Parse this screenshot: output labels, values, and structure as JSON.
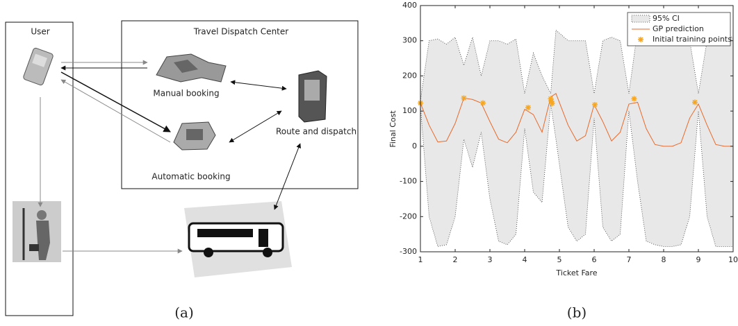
{
  "diagram": {
    "user_label": "User",
    "center_title": "Travel Dispatch Center",
    "nodes": [
      "Manual booking",
      "Automatic booking",
      "Route and dispatch"
    ]
  },
  "panel_labels": [
    "(a)",
    "(b)"
  ],
  "chart_data": {
    "type": "line",
    "xlabel": "Ticket Fare",
    "ylabel": "Final Cost",
    "xlim": [
      1,
      10
    ],
    "ylim": [
      -300,
      400
    ],
    "xticks": [
      1,
      2,
      3,
      4,
      5,
      6,
      7,
      8,
      9,
      10
    ],
    "yticks": [
      -300,
      -200,
      -100,
      0,
      100,
      200,
      300,
      400
    ],
    "legend": "upper right",
    "x": [
      1,
      1.25,
      1.5,
      1.75,
      2,
      2.25,
      2.5,
      2.75,
      3,
      3.25,
      3.5,
      3.75,
      4,
      4.25,
      4.5,
      4.75,
      4.9,
      5.25,
      5.5,
      5.75,
      6,
      6.25,
      6.5,
      6.75,
      7,
      7.25,
      7.5,
      7.75,
      8,
      8.25,
      8.5,
      8.75,
      9,
      9.25,
      9.5,
      9.75,
      10
    ],
    "series": [
      {
        "name": "95% CI",
        "kind": "band",
        "color": "#e8e8e8",
        "upper": [
          130,
          300,
          305,
          290,
          310,
          230,
          310,
          200,
          300,
          300,
          290,
          305,
          150,
          265,
          200,
          150,
          330,
          300,
          300,
          300,
          150,
          300,
          310,
          300,
          150,
          330,
          320,
          320,
          325,
          330,
          330,
          300,
          150,
          300,
          310,
          310,
          310
        ],
        "lower": [
          115,
          -200,
          -285,
          -280,
          -200,
          20,
          -60,
          40,
          -150,
          -270,
          -280,
          -250,
          50,
          -130,
          -160,
          120,
          20,
          -230,
          -270,
          -250,
          80,
          -230,
          -270,
          -250,
          100,
          -100,
          -270,
          -280,
          -285,
          -285,
          -280,
          -200,
          100,
          -200,
          -285,
          -285,
          -285
        ]
      },
      {
        "name": "GP prediction",
        "kind": "line",
        "color": "#e8692a",
        "values": [
          123,
          60,
          12,
          15,
          65,
          137,
          133,
          123,
          70,
          20,
          10,
          40,
          105,
          90,
          40,
          140,
          150,
          60,
          15,
          30,
          118,
          70,
          15,
          40,
          120,
          125,
          50,
          5,
          0,
          0,
          10,
          80,
          120,
          60,
          5,
          0,
          0
        ]
      },
      {
        "name": "Initial training points",
        "kind": "scatter",
        "color": "#f5a623",
        "x": [
          1,
          2.25,
          2.8,
          4.1,
          4.75,
          4.77,
          4.79,
          6.02,
          7.15,
          8.9
        ],
        "values": [
          123,
          137,
          123,
          110,
          135,
          128,
          122,
          118,
          135,
          125
        ]
      }
    ]
  }
}
